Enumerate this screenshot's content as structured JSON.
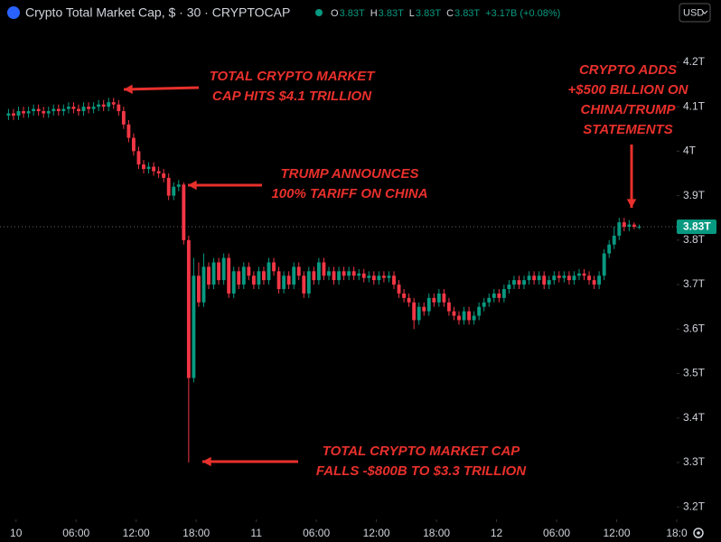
{
  "header": {
    "title": "Crypto Total Market Cap, $ · 30 · CRYPTOCAP",
    "ohlc": [
      {
        "key": "O",
        "value": "3.83T"
      },
      {
        "key": "H",
        "value": "3.83T"
      },
      {
        "key": "L",
        "value": "3.83T"
      },
      {
        "key": "C",
        "value": "3.83T"
      }
    ],
    "change": "+3.17B (+0.08%)",
    "currency": "USD"
  },
  "chart_data": {
    "type": "candlestick",
    "up_color": "#089981",
    "down_color": "#f23645",
    "xlim": [
      -1.6,
      66
    ],
    "xticks": [
      {
        "value": 0,
        "label": "10"
      },
      {
        "value": 6,
        "label": "06:00"
      },
      {
        "value": 12,
        "label": "12:00"
      },
      {
        "value": 18,
        "label": "18:00"
      },
      {
        "value": 24,
        "label": "11"
      },
      {
        "value": 30,
        "label": "06:00"
      },
      {
        "value": 36,
        "label": "12:00"
      },
      {
        "value": 42,
        "label": "18:00"
      },
      {
        "value": 48,
        "label": "12"
      },
      {
        "value": 54,
        "label": "06:00"
      },
      {
        "value": 60,
        "label": "12:00"
      },
      {
        "value": 66,
        "label": "18:0"
      }
    ],
    "ylim": [
      3.172,
      4.279
    ],
    "yticks": [
      {
        "value": 3.2,
        "label": "3.2T"
      },
      {
        "value": 3.3,
        "label": "3.3T"
      },
      {
        "value": 3.4,
        "label": "3.4T"
      },
      {
        "value": 3.5,
        "label": "3.5T"
      },
      {
        "value": 3.6,
        "label": "3.6T"
      },
      {
        "value": 3.7,
        "label": "3.7T"
      },
      {
        "value": 3.8,
        "label": "3.8T"
      },
      {
        "value": 3.9,
        "label": "3.9T"
      },
      {
        "value": 4,
        "label": "4T"
      },
      {
        "value": 4.1,
        "label": "4.1T"
      },
      {
        "value": 4.2,
        "label": "4.2T"
      }
    ],
    "last_price": 3.83,
    "last_price_label": "3.83T",
    "x": [
      -1,
      -0.5,
      0,
      0.5,
      1,
      1.5,
      2,
      2.5,
      3,
      3.5,
      4,
      4.5,
      5,
      5.5,
      6,
      6.5,
      7,
      7.5,
      8,
      8.5,
      9,
      9.5,
      10,
      10.5,
      11,
      11.5,
      12,
      12.5,
      13,
      13.5,
      14,
      14.5,
      15,
      15.5,
      16,
      16.5,
      17,
      17.5,
      18,
      18.5,
      19,
      19.5,
      20,
      20.5,
      21,
      21.5,
      22,
      22.5,
      23,
      23.5,
      24,
      24.5,
      25,
      25.5,
      26,
      26.5,
      27,
      27.5,
      28,
      28.5,
      29,
      29.5,
      30,
      30.5,
      31,
      31.5,
      32,
      32.5,
      33,
      33.5,
      34,
      34.5,
      35,
      35.5,
      36,
      36.5,
      37,
      37.5,
      38,
      38.5,
      39,
      39.5,
      40,
      40.5,
      41,
      41.5,
      42,
      42.5,
      43,
      43.5,
      44,
      44.5,
      45,
      45.5,
      46,
      46.5,
      47,
      47.5,
      48,
      48.5,
      49,
      49.5,
      50,
      50.5,
      51,
      51.5,
      52,
      52.5,
      53,
      53.5,
      54,
      54.5,
      55,
      55.5,
      56,
      56.5,
      57,
      57.5,
      58,
      58.5,
      59,
      59.5,
      60,
      60.5,
      61,
      61.5,
      62
    ],
    "open": [
      4.08,
      4.085,
      4.08,
      4.09,
      4.085,
      4.09,
      4.095,
      4.09,
      4.085,
      4.09,
      4.095,
      4.09,
      4.095,
      4.1,
      4.095,
      4.09,
      4.1,
      4.095,
      4.1,
      4.105,
      4.1,
      4.11,
      4.105,
      4.09,
      4.06,
      4.03,
      4.0,
      3.97,
      3.96,
      3.965,
      3.955,
      3.95,
      3.94,
      3.9,
      3.92,
      3.925,
      3.8,
      3.49,
      3.72,
      3.66,
      3.74,
      3.7,
      3.75,
      3.71,
      3.76,
      3.68,
      3.73,
      3.7,
      3.74,
      3.72,
      3.7,
      3.73,
      3.71,
      3.75,
      3.73,
      3.69,
      3.72,
      3.7,
      3.74,
      3.72,
      3.68,
      3.73,
      3.71,
      3.75,
      3.72,
      3.73,
      3.71,
      3.73,
      3.72,
      3.73,
      3.72,
      3.725,
      3.715,
      3.72,
      3.71,
      3.72,
      3.715,
      3.72,
      3.7,
      3.68,
      3.67,
      3.66,
      3.62,
      3.65,
      3.64,
      3.67,
      3.66,
      3.68,
      3.66,
      3.64,
      3.63,
      3.62,
      3.64,
      3.62,
      3.63,
      3.65,
      3.66,
      3.67,
      3.68,
      3.67,
      3.69,
      3.7,
      3.71,
      3.7,
      3.71,
      3.72,
      3.71,
      3.72,
      3.7,
      3.71,
      3.72,
      3.715,
      3.72,
      3.71,
      3.72,
      3.725,
      3.72,
      3.71,
      3.7,
      3.72,
      3.77,
      3.79,
      3.81,
      3.84,
      3.83,
      3.835,
      3.83
    ],
    "high": [
      4.095,
      4.095,
      4.1,
      4.1,
      4.1,
      4.105,
      4.105,
      4.1,
      4.1,
      4.105,
      4.105,
      4.105,
      4.11,
      4.11,
      4.105,
      4.11,
      4.11,
      4.11,
      4.115,
      4.115,
      4.12,
      4.12,
      4.115,
      4.1,
      4.07,
      4.04,
      4.01,
      3.98,
      3.975,
      3.975,
      3.965,
      3.96,
      3.95,
      3.93,
      3.935,
      3.93,
      3.81,
      3.76,
      3.75,
      3.77,
      3.75,
      3.76,
      3.76,
      3.77,
      3.77,
      3.74,
      3.74,
      3.75,
      3.75,
      3.73,
      3.74,
      3.74,
      3.76,
      3.76,
      3.74,
      3.73,
      3.73,
      3.75,
      3.75,
      3.73,
      3.74,
      3.74,
      3.76,
      3.76,
      3.74,
      3.74,
      3.74,
      3.74,
      3.74,
      3.74,
      3.735,
      3.735,
      3.73,
      3.73,
      3.73,
      3.73,
      3.73,
      3.73,
      3.71,
      3.69,
      3.68,
      3.67,
      3.66,
      3.66,
      3.68,
      3.68,
      3.69,
      3.69,
      3.67,
      3.65,
      3.64,
      3.65,
      3.65,
      3.64,
      3.66,
      3.67,
      3.68,
      3.69,
      3.69,
      3.7,
      3.71,
      3.72,
      3.72,
      3.72,
      3.73,
      3.73,
      3.73,
      3.73,
      3.72,
      3.73,
      3.73,
      3.73,
      3.73,
      3.73,
      3.735,
      3.735,
      3.73,
      3.72,
      3.73,
      3.78,
      3.8,
      3.83,
      3.85,
      3.85,
      3.845,
      3.84,
      3.835
    ],
    "low": [
      4.07,
      4.07,
      4.07,
      4.075,
      4.075,
      4.08,
      4.08,
      4.075,
      4.075,
      4.08,
      4.08,
      4.08,
      4.085,
      4.085,
      4.08,
      4.08,
      4.085,
      4.085,
      4.09,
      4.09,
      4.09,
      4.095,
      4.08,
      4.05,
      4.02,
      3.99,
      3.96,
      3.95,
      3.95,
      3.945,
      3.94,
      3.93,
      3.89,
      3.89,
      3.91,
      3.79,
      3.3,
      3.48,
      3.65,
      3.65,
      3.69,
      3.69,
      3.7,
      3.7,
      3.67,
      3.67,
      3.69,
      3.69,
      3.71,
      3.69,
      3.69,
      3.7,
      3.7,
      3.72,
      3.68,
      3.68,
      3.69,
      3.69,
      3.71,
      3.67,
      3.67,
      3.7,
      3.7,
      3.71,
      3.71,
      3.7,
      3.7,
      3.71,
      3.71,
      3.71,
      3.71,
      3.705,
      3.705,
      3.7,
      3.7,
      3.705,
      3.705,
      3.69,
      3.67,
      3.66,
      3.65,
      3.6,
      3.61,
      3.63,
      3.63,
      3.65,
      3.65,
      3.65,
      3.63,
      3.62,
      3.61,
      3.61,
      3.61,
      3.61,
      3.62,
      3.64,
      3.65,
      3.66,
      3.66,
      3.66,
      3.68,
      3.69,
      3.69,
      3.69,
      3.7,
      3.7,
      3.7,
      3.69,
      3.69,
      3.7,
      3.705,
      3.705,
      3.7,
      3.7,
      3.71,
      3.71,
      3.7,
      3.69,
      3.69,
      3.71,
      3.76,
      3.78,
      3.8,
      3.82,
      3.82,
      3.825,
      3.825
    ],
    "close": [
      4.085,
      4.08,
      4.09,
      4.085,
      4.09,
      4.095,
      4.09,
      4.085,
      4.09,
      4.095,
      4.09,
      4.095,
      4.1,
      4.095,
      4.09,
      4.1,
      4.095,
      4.1,
      4.105,
      4.1,
      4.11,
      4.105,
      4.09,
      4.06,
      4.03,
      4.0,
      3.97,
      3.96,
      3.965,
      3.955,
      3.95,
      3.94,
      3.9,
      3.92,
      3.925,
      3.8,
      3.49,
      3.72,
      3.66,
      3.74,
      3.7,
      3.75,
      3.71,
      3.76,
      3.68,
      3.73,
      3.7,
      3.74,
      3.72,
      3.7,
      3.73,
      3.71,
      3.75,
      3.73,
      3.69,
      3.72,
      3.7,
      3.74,
      3.72,
      3.68,
      3.73,
      3.71,
      3.75,
      3.72,
      3.73,
      3.71,
      3.73,
      3.72,
      3.73,
      3.72,
      3.725,
      3.715,
      3.72,
      3.71,
      3.72,
      3.715,
      3.72,
      3.7,
      3.68,
      3.67,
      3.66,
      3.62,
      3.65,
      3.64,
      3.67,
      3.66,
      3.68,
      3.66,
      3.64,
      3.63,
      3.62,
      3.64,
      3.62,
      3.63,
      3.65,
      3.66,
      3.67,
      3.68,
      3.67,
      3.69,
      3.7,
      3.71,
      3.7,
      3.71,
      3.72,
      3.71,
      3.72,
      3.7,
      3.71,
      3.72,
      3.715,
      3.72,
      3.71,
      3.72,
      3.725,
      3.72,
      3.71,
      3.7,
      3.72,
      3.77,
      3.79,
      3.81,
      3.84,
      3.83,
      3.835,
      3.83,
      3.83
    ],
    "annotations": [
      {
        "lines": [
          "TOTAL CRYPTO MARKET",
          "CAP HITS $4.1 TRILLION"
        ]
      },
      {
        "lines": [
          "TRUMP ANNOUNCES",
          "100% TARIFF ON CHINA"
        ]
      },
      {
        "lines": [
          "TOTAL CRYPTO MARKET CAP",
          "FALLS -$800B TO $3.3 TRILLION"
        ]
      },
      {
        "lines": [
          "CRYPTO ADDS",
          "+$500 BILLION ON",
          "CHINA/TRUMP",
          "STATEMENTS"
        ]
      }
    ]
  }
}
